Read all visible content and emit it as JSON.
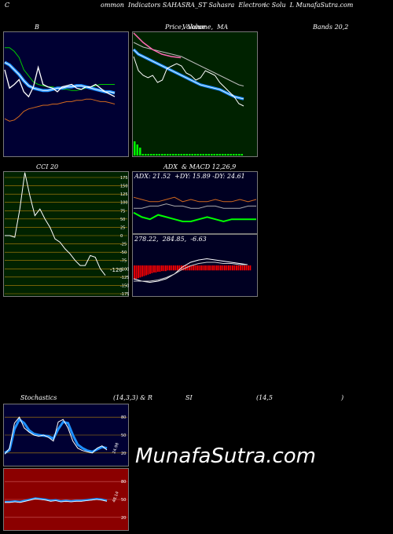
{
  "header": {
    "left": "C",
    "mid1": "ommon  Indicators SAHASRA_ST Sahasra  Electron",
    "mid2": "ic Solu  L MunafaSutra.com"
  },
  "panels": {
    "bollinger": {
      "title": "B",
      "right_title": "Bands 20,2"
    },
    "price": {
      "title": "Price,  Volume,  MA",
      "overlay": "Volume"
    },
    "cci": {
      "title": "CCI 20",
      "ticks": [
        "175",
        "150",
        "125",
        "100",
        "75",
        "50",
        "25",
        "0",
        "-25",
        "-50",
        "-75",
        "-100",
        "-125",
        "-150",
        "-175"
      ],
      "last_value": "-120"
    },
    "adx": {
      "title": "ADX  & MACD 12,26,9",
      "readout": "ADX: 21.52  +DY: 15.89 -DY: 24.61"
    },
    "macd": {
      "readout": "278.22,  284.85,  -6.63"
    },
    "stoch": {
      "title1": "Stochastics",
      "title2": "(14,3,3) & R",
      "title3": "SI",
      "title4": "(14,5",
      "title5": ")",
      "ticks": [
        "80",
        "50",
        "20"
      ],
      "last_value": "24.98"
    },
    "rsi": {
      "ticks": [
        "80",
        "50",
        "20"
      ],
      "last_value": "48.14"
    }
  },
  "watermark": "MunafaSutra.com",
  "colors": {
    "green_panel": "#002200",
    "grid_orange": "#b8860b",
    "red_panel": "#8b0000",
    "navy_panel": "#000022",
    "blue_line": "#1e90ff"
  },
  "chart_data": [
    {
      "type": "line",
      "name": "bollinger_bands",
      "series": [
        {
          "name": "upper",
          "values": [
            88,
            88,
            85,
            80,
            70,
            65,
            60,
            58,
            57,
            56,
            56,
            55,
            54,
            54,
            53,
            53,
            54,
            55,
            56,
            57,
            58,
            58,
            58,
            58
          ]
        },
        {
          "name": "middle",
          "values": [
            76,
            74,
            70,
            66,
            61,
            57,
            55,
            54,
            53,
            53,
            54,
            55,
            55,
            56,
            56,
            57,
            57,
            56,
            55,
            54,
            53,
            52,
            52,
            51
          ]
        },
        {
          "name": "lower",
          "values": [
            30,
            28,
            29,
            32,
            36,
            38,
            39,
            40,
            41,
            41,
            42,
            42,
            43,
            44,
            44,
            45,
            45,
            46,
            46,
            45,
            44,
            44,
            43,
            42
          ]
        },
        {
          "name": "price",
          "values": [
            70,
            55,
            58,
            62,
            52,
            48,
            56,
            72,
            58,
            56,
            55,
            52,
            56,
            57,
            58,
            55,
            54,
            56,
            56,
            58,
            55,
            52,
            50,
            48
          ]
        }
      ]
    },
    {
      "type": "line",
      "name": "price_ma",
      "series": [
        {
          "name": "price",
          "values": [
            80,
            68,
            64,
            62,
            64,
            58,
            60,
            70,
            72,
            74,
            72,
            66,
            64,
            60,
            62,
            68,
            66,
            64,
            58,
            54,
            50,
            46,
            40,
            38
          ]
        },
        {
          "name": "ma_short",
          "values": [
            86,
            82,
            80,
            78,
            76,
            74,
            72,
            70,
            68,
            66,
            64,
            62,
            60,
            58,
            56,
            55,
            54,
            53,
            52,
            50,
            48,
            46,
            45,
            44
          ]
        },
        {
          "name": "ma_long",
          "values": [
            92,
            90,
            88,
            87,
            86,
            85,
            84,
            83,
            82,
            81,
            80,
            78,
            76,
            74,
            72,
            70,
            68,
            66,
            64,
            62,
            60,
            58,
            56,
            55
          ]
        }
      ]
    },
    {
      "type": "line",
      "name": "cci",
      "values": [
        0,
        0,
        -5,
        80,
        190,
        120,
        60,
        80,
        50,
        25,
        -10,
        -20,
        -40,
        -55,
        -75,
        -90,
        -90,
        -60,
        -65,
        -100,
        -120
      ],
      "ylim": [
        -175,
        175
      ]
    },
    {
      "type": "line",
      "name": "adx",
      "series": [
        {
          "name": "adx",
          "values": [
            21,
            21,
            22,
            22,
            23,
            22,
            22,
            21,
            21,
            22,
            22,
            21,
            21,
            21,
            22,
            22
          ]
        },
        {
          "name": "+DY",
          "values": [
            19,
            17,
            16,
            18,
            17,
            16,
            15,
            15,
            16,
            17,
            16,
            15,
            16,
            16,
            16,
            16
          ]
        },
        {
          "name": "-DY",
          "values": [
            26,
            25,
            24,
            24,
            25,
            26,
            24,
            25,
            24,
            24,
            25,
            24,
            24,
            25,
            24,
            25
          ]
        }
      ]
    },
    {
      "type": "bar",
      "name": "macd_histogram",
      "values": [
        -20,
        -19,
        -18,
        -17,
        -16,
        -15,
        -14,
        -13,
        -12,
        -11,
        -10,
        -10,
        -9,
        -9,
        -8,
        -8,
        -8,
        -7,
        -7,
        -7,
        -7,
        -7,
        -7,
        -7,
        -7,
        -7,
        -7,
        -7,
        -7,
        -7,
        -7,
        -7,
        -7,
        -7,
        -7,
        -7,
        -7,
        -7,
        -7,
        -7,
        -7,
        -7,
        -7,
        -7,
        -7,
        -7,
        -7,
        -7,
        -7,
        -7,
        -7,
        -7,
        -7,
        -7,
        -7,
        -7,
        -7,
        -7,
        -7,
        -7
      ]
    },
    {
      "type": "line",
      "name": "stochastics",
      "series": [
        {
          "name": "k",
          "values": [
            18,
            28,
            70,
            80,
            62,
            55,
            50,
            48,
            50,
            46,
            40,
            72,
            76,
            62,
            40,
            28,
            24,
            22,
            20,
            28,
            32,
            25
          ]
        },
        {
          "name": "d",
          "values": [
            20,
            25,
            60,
            76,
            70,
            58,
            52,
            50,
            49,
            48,
            44,
            60,
            72,
            70,
            50,
            34,
            28,
            24,
            22,
            26,
            30,
            28
          ]
        }
      ],
      "ylim": [
        0,
        100
      ]
    },
    {
      "type": "line",
      "name": "rsi",
      "series": [
        {
          "name": "rsi",
          "values": [
            46,
            46,
            47,
            46,
            48,
            50,
            52,
            51,
            50,
            48,
            49,
            47,
            48,
            47,
            48,
            48,
            49,
            50,
            51,
            50,
            48
          ]
        }
      ],
      "ylim": [
        0,
        100
      ]
    }
  ]
}
